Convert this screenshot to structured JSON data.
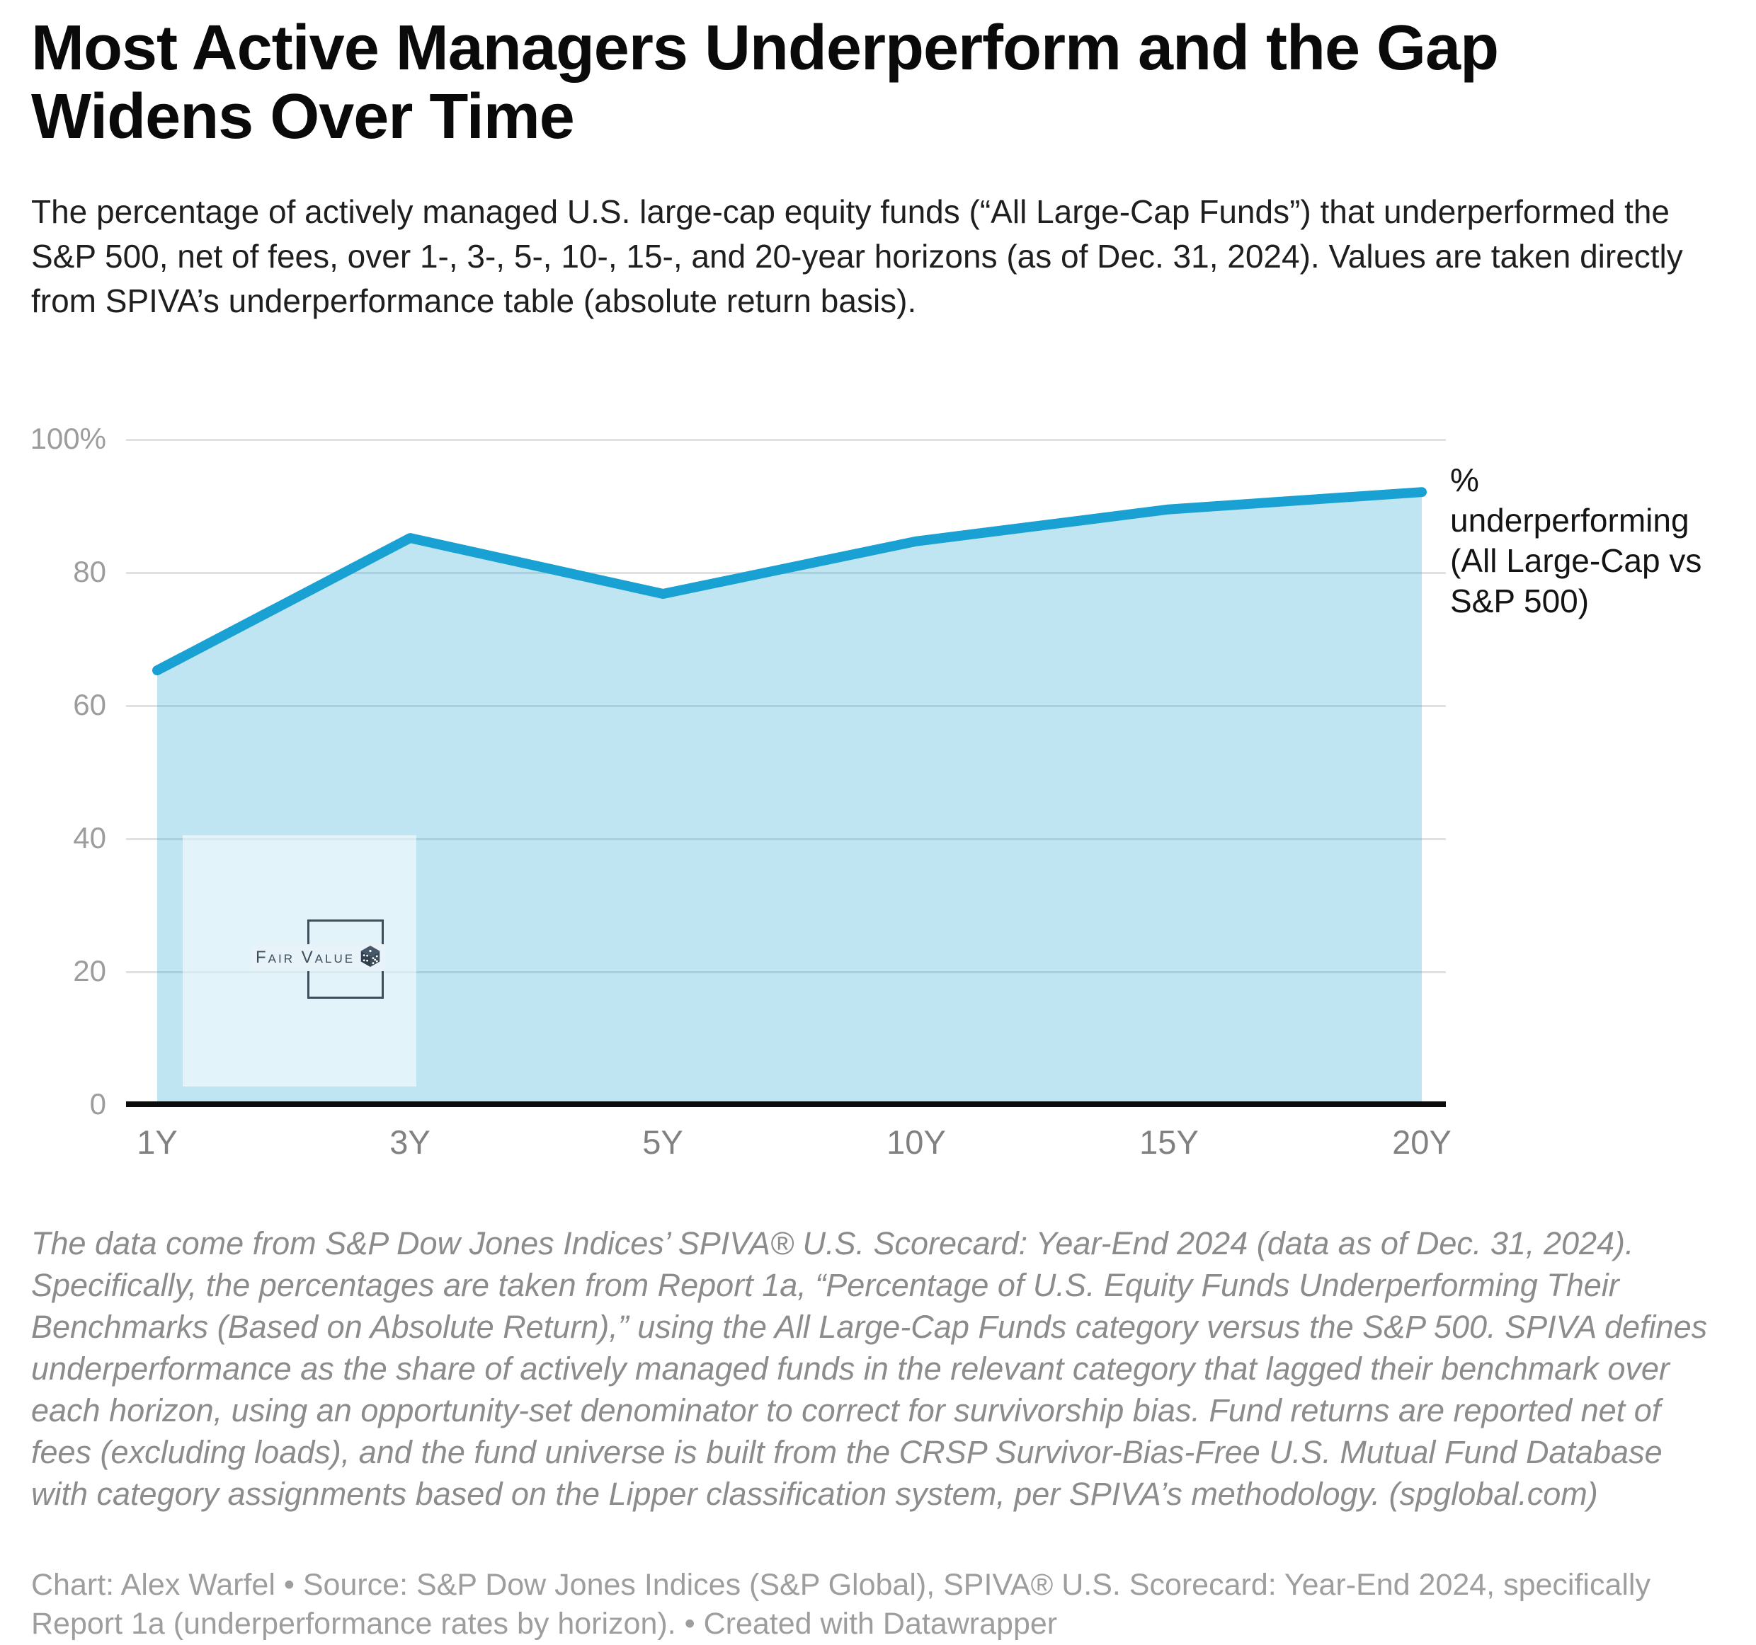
{
  "title": "Most Active Managers Underperform and the Gap Widens Over Time",
  "description": "The percentage of actively managed U.S. large-cap equity funds (“All Large-Cap Funds”) that underperformed the S&P 500, net of fees, over 1-, 3-, 5-, 10-, 15-, and 20-year horizons (as of Dec. 31, 2024). Values are taken directly from SPIVA’s underperformance table (absolute return basis).",
  "axes": {
    "y_ticks": [
      "100%",
      "80",
      "60",
      "40",
      "20",
      "0"
    ],
    "x_ticks": [
      "1Y",
      "3Y",
      "5Y",
      "10Y",
      "15Y",
      "20Y"
    ]
  },
  "annotation": {
    "lines": [
      "%",
      "underperforming",
      "(All Large-Cap vs",
      "S&P 500)"
    ]
  },
  "watermark": {
    "label": "Fair Value",
    "icon": "dice-icon"
  },
  "chart_data": {
    "type": "area",
    "categories": [
      "1Y",
      "3Y",
      "5Y",
      "10Y",
      "15Y",
      "20Y"
    ],
    "values": [
      65.2,
      85.1,
      76.7,
      84.6,
      89.4,
      92.0
    ],
    "series_label": "% underperforming (All Large-Cap vs S&P 500)",
    "title": "Most Active Managers Underperform and the Gap Widens Over Time",
    "xlabel": "",
    "ylabel": "",
    "ylim": [
      0,
      100
    ],
    "grid": true,
    "legend_position": "right-annotation",
    "line_color": "#18a1d2",
    "fill_color": "#bee3f2",
    "fill_opacity": 0.28
  },
  "colors": {
    "accent": "#18a1d2",
    "grid": "#e1e1e1",
    "axis": "#0c0c0c",
    "watermark": "#3d4d5a"
  },
  "notes": "The data come from S&P Dow Jones Indices’ SPIVA® U.S. Scorecard: Year-End 2024 (data as of Dec. 31, 2024). Specifically, the percentages are taken from Report 1a, “Percentage of U.S. Equity Funds Underperforming Their Benchmarks (Based on Absolute Return),” using the All Large-Cap Funds category versus the S&P 500. SPIVA defines underperformance as the share of actively managed funds in the relevant category that lagged their benchmark over each horizon, using an opportunity-set denominator to correct for survivorship bias. Fund returns are reported net of fees (excluding loads), and the fund universe is built from the CRSP Survivor-Bias-Free U.S. Mutual Fund Database with category assignments based on the Lipper classification system, per SPIVA’s methodology. (spglobal.com)",
  "credit": "Chart: Alex Warfel • Source: S&P Dow Jones Indices (S&P Global), SPIVA® U.S. Scorecard: Year-End 2024, specifically Report 1a (underperformance rates by horizon).  • Created with Datawrapper"
}
